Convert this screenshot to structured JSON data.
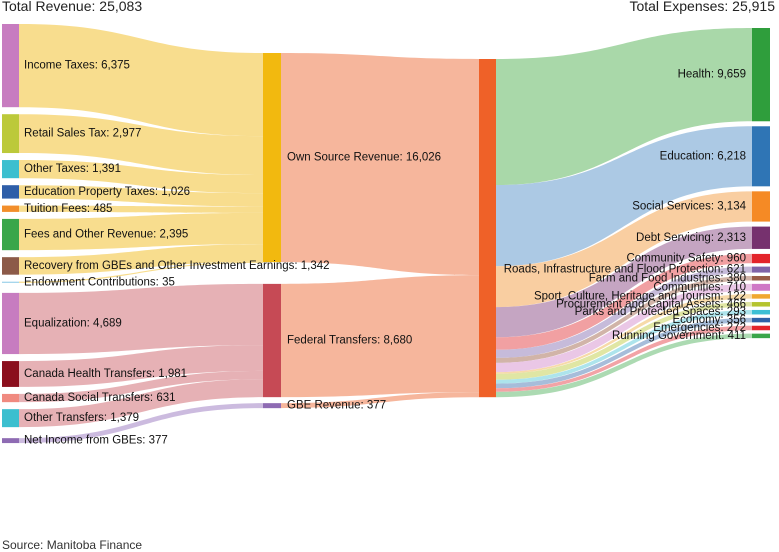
{
  "headers": {
    "total_revenue": "Total Revenue: 25,083",
    "total_expenses": "Total Expenses: 25,915"
  },
  "source": "Source: Manitoba Finance",
  "chart_data": {
    "type": "sankey",
    "title": "",
    "units": "",
    "sources": [
      {
        "label": "Income Taxes: 6,375",
        "value": 6375,
        "color": "#c77cc0",
        "group": "own"
      },
      {
        "label": "Retail Sales Tax: 2,977",
        "value": 2977,
        "color": "#bcc93a",
        "group": "own"
      },
      {
        "label": "Other Taxes: 1,391",
        "value": 1391,
        "color": "#3cbfcf",
        "group": "own"
      },
      {
        "label": "Education Property Taxes: 1,026",
        "value": 1026,
        "color": "#2e5ea8",
        "group": "own"
      },
      {
        "label": "Tuition Fees: 485",
        "value": 485,
        "color": "#f28e2b",
        "group": "own"
      },
      {
        "label": "Fees and Other Revenue: 2,395",
        "value": 2395,
        "color": "#3aa64a",
        "group": "own"
      },
      {
        "label": "Recovery from GBEs and Other Investment Earnings: 1,342",
        "value": 1342,
        "color": "#8c5a48",
        "group": "own"
      },
      {
        "label": "Endowment Contributions: 35",
        "value": 35,
        "color": "#9bd0ea",
        "group": "own"
      },
      {
        "label": "Equalization: 4,689",
        "value": 4689,
        "color": "#c77cc0",
        "group": "fed"
      },
      {
        "label": "Canada Health Transfers: 1,981",
        "value": 1981,
        "color": "#8b0f1d",
        "group": "fed"
      },
      {
        "label": "Canada Social Transfers: 631",
        "value": 631,
        "color": "#f08a80",
        "group": "fed"
      },
      {
        "label": "Other Transfers: 1,379",
        "value": 1379,
        "color": "#3cbfcf",
        "group": "fed"
      },
      {
        "label": "Net Income from GBEs: 377",
        "value": 377,
        "color": "#8e6bb3",
        "group": "gbe"
      }
    ],
    "middle": [
      {
        "id": "own",
        "label": "Own Source Revenue: 16,026",
        "value": 16026,
        "color": "#f2b90f",
        "flow_color": "#f7d77a",
        "out_color": "#f5a98b"
      },
      {
        "id": "fed",
        "label": "Federal Transfers: 8,680",
        "value": 8680,
        "color": "#c64a55",
        "flow_color": "#e2a3a8",
        "out_color": "#f5a98b"
      },
      {
        "id": "gbe",
        "label": "GBE Revenue: 377",
        "value": 377,
        "color": "#8e6bb3",
        "flow_color": "#c3afd9",
        "out_color": "#f5a98b"
      }
    ],
    "hub": {
      "color": "#ef6128"
    },
    "targets": [
      {
        "label": "Health: 9,659",
        "value": 9659,
        "color": "#2f9e3c",
        "flow_color": "#9ad19a"
      },
      {
        "label": "Education: 6,218",
        "value": 6218,
        "color": "#2f75b5",
        "flow_color": "#9dbfdf"
      },
      {
        "label": "Social Services: 3,134",
        "value": 3134,
        "color": "#f58a25",
        "flow_color": "#f8c591"
      },
      {
        "label": "Debt Servicing: 2,313",
        "value": 2313,
        "color": "#76316e",
        "flow_color": "#bb95b7"
      },
      {
        "label": "Community Safety: 960",
        "value": 960,
        "color": "#e3242b",
        "flow_color": "#ee8f92"
      },
      {
        "label": "Roads, Infrastructure and Flood Protection: 621",
        "value": 621,
        "color": "#8063a8",
        "flow_color": "#bcafd4"
      },
      {
        "label": "Farm and Food Industries: 380",
        "value": 380,
        "color": "#9a5c48",
        "flow_color": "#c9a799"
      },
      {
        "label": "Communities: 710",
        "value": 710,
        "color": "#cf78c6",
        "flow_color": "#e6bde2"
      },
      {
        "label": "Sport, Culture, Heritage and Tourism: 122",
        "value": 122,
        "color": "#f0a830",
        "flow_color": "#f6d49a"
      },
      {
        "label": "Procurement and Capital Assets: 466",
        "value": 466,
        "color": "#b5c42e",
        "flow_color": "#dbe294"
      },
      {
        "label": "Parks and Protected Spaces: 293",
        "value": 293,
        "color": "#3dbfd4",
        "flow_color": "#9fdfe9"
      },
      {
        "label": "Economy: 356",
        "value": 356,
        "color": "#2e62a8",
        "flow_color": "#97b1d4"
      },
      {
        "label": "Emergencies: 272",
        "value": 272,
        "color": "#e3242b",
        "flow_color": "#f09396"
      },
      {
        "label": "Running Government: 411",
        "value": 411,
        "color": "#3aa64a",
        "flow_color": "#9dd3a5"
      }
    ]
  }
}
